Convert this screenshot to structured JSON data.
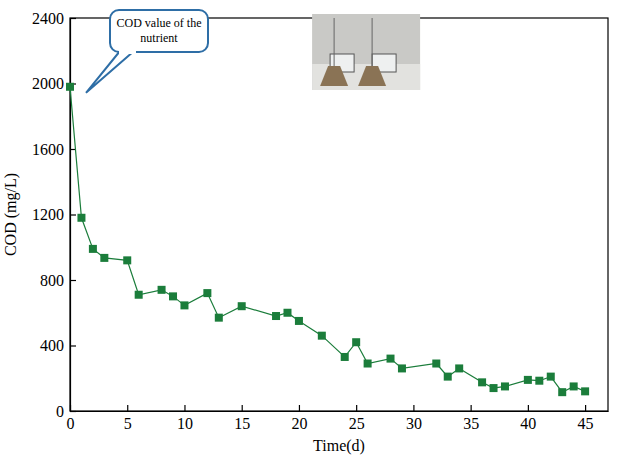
{
  "chart_data": {
    "type": "line",
    "x_label": "Time(d)",
    "y_label": "COD (mg/L)",
    "annotation": "COD value of the nutrient",
    "x": [
      0,
      1,
      2,
      3,
      5,
      6,
      8,
      9,
      10,
      12,
      13,
      15,
      18,
      19,
      20,
      22,
      24,
      25,
      26,
      28,
      29,
      32,
      33,
      34,
      36,
      37,
      38,
      40,
      41,
      42,
      43,
      44,
      45
    ],
    "series": [
      {
        "color": "#1b7d3b",
        "marker": "square",
        "line_style": "solid",
        "values": [
          1980,
          1180,
          990,
          935,
          920,
          710,
          740,
          700,
          645,
          720,
          570,
          640,
          580,
          600,
          550,
          460,
          330,
          420,
          290,
          320,
          260,
          290,
          210,
          260,
          175,
          140,
          150,
          190,
          185,
          210,
          115,
          150,
          120
        ]
      }
    ],
    "xlim": [
      0,
      47
    ],
    "ylim": [
      0,
      2400
    ],
    "xticks": [
      0,
      5,
      10,
      15,
      20,
      25,
      30,
      35,
      40,
      45
    ],
    "yticks": [
      0,
      400,
      800,
      1200,
      1600,
      2000,
      2400
    ],
    "grid": false
  }
}
